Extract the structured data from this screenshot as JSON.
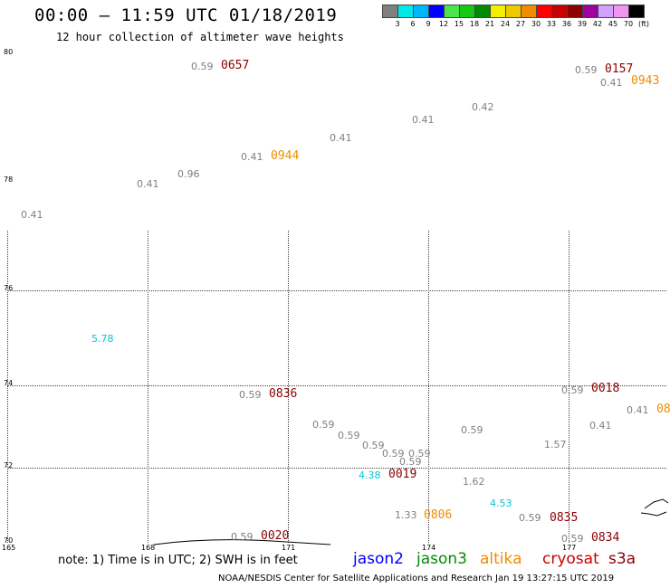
{
  "title": "00:00 – 11:59 UTC 01/18/2019",
  "subtitle": "12 hour collection of altimeter wave heights",
  "legend": {
    "colors": [
      "#808080",
      "#00e8e8",
      "#00b4ff",
      "#0000ff",
      "#4ce44c",
      "#14c814",
      "#008c00",
      "#f0f000",
      "#f0c800",
      "#f08c00",
      "#ff0000",
      "#c80000",
      "#8c0000",
      "#a000a0",
      "#d2a0ff",
      "#f096f0",
      "#000000"
    ],
    "labels": [
      "3",
      "6",
      "9",
      "12",
      "15",
      "18",
      "21",
      "24",
      "27",
      "30",
      "33",
      "36",
      "39",
      "42",
      "45",
      "70",
      "(ft)"
    ]
  },
  "lat_labels": [
    "80",
    "78",
    "76",
    "74",
    "72",
    "70"
  ],
  "lon_labels": [
    "165",
    "168",
    "171",
    "174",
    "177"
  ],
  "values": [
    {
      "text": "0.59",
      "color": "#808080"
    },
    {
      "text": "0.59",
      "color": "#808080"
    },
    {
      "text": "0.41",
      "color": "#808080"
    },
    {
      "text": "0.42",
      "color": "#808080"
    },
    {
      "text": "0.41",
      "color": "#808080"
    },
    {
      "text": "0.41",
      "color": "#808080"
    },
    {
      "text": "0.41",
      "color": "#808080"
    },
    {
      "text": "0.96",
      "color": "#808080"
    },
    {
      "text": "0.41",
      "color": "#808080"
    },
    {
      "text": "0.41",
      "color": "#808080"
    },
    {
      "text": "5.78",
      "color": "#00c8dc"
    },
    {
      "text": "0.59",
      "color": "#808080"
    },
    {
      "text": "0.59",
      "color": "#808080"
    },
    {
      "text": "0.41",
      "color": "#808080"
    },
    {
      "text": "0.41",
      "color": "#808080"
    },
    {
      "text": "0.59",
      "color": "#808080"
    },
    {
      "text": "0.59",
      "color": "#808080"
    },
    {
      "text": "0.59",
      "color": "#808080"
    },
    {
      "text": "0.59",
      "color": "#808080"
    },
    {
      "text": "0.59",
      "color": "#808080"
    },
    {
      "text": "0.59",
      "color": "#808080"
    },
    {
      "text": "0.59",
      "color": "#808080"
    },
    {
      "text": "1.57",
      "color": "#808080"
    },
    {
      "text": "4.38",
      "color": "#00c8dc"
    },
    {
      "text": "1.62",
      "color": "#808080"
    },
    {
      "text": "4.53",
      "color": "#00c8dc"
    },
    {
      "text": "1.33",
      "color": "#808080"
    },
    {
      "text": "0.59",
      "color": "#808080"
    },
    {
      "text": "0.59",
      "color": "#808080"
    },
    {
      "text": "0.59",
      "color": "#808080"
    }
  ],
  "times": [
    {
      "text": "0657",
      "color": "#8c0000"
    },
    {
      "text": "0157",
      "color": "#8c0000"
    },
    {
      "text": "0943",
      "color": "#f08c00"
    },
    {
      "text": "0944",
      "color": "#f08c00"
    },
    {
      "text": "0836",
      "color": "#8c0000"
    },
    {
      "text": "0018",
      "color": "#8c0000"
    },
    {
      "text": "08",
      "color": "#f08c00"
    },
    {
      "text": "0019",
      "color": "#8c0000"
    },
    {
      "text": "0806",
      "color": "#f08c00"
    },
    {
      "text": "0835",
      "color": "#8c0000"
    },
    {
      "text": "0834",
      "color": "#8c0000"
    },
    {
      "text": "0020",
      "color": "#8c0000"
    }
  ],
  "note": "note: 1) Time is in UTC; 2) SWH is in feet",
  "satellites": [
    {
      "name": "jason2",
      "color": "#0000ff"
    },
    {
      "name": "jason3",
      "color": "#008c00"
    },
    {
      "name": "altika",
      "color": "#f08c00"
    },
    {
      "name": "cryosat",
      "color": "#c80000"
    },
    {
      "name": "s3a",
      "color": "#8c0000"
    }
  ],
  "footer": "NOAA/NESDIS Center for Satellite Applications and Research    Jan 19 13:27:15 UTC 2019"
}
